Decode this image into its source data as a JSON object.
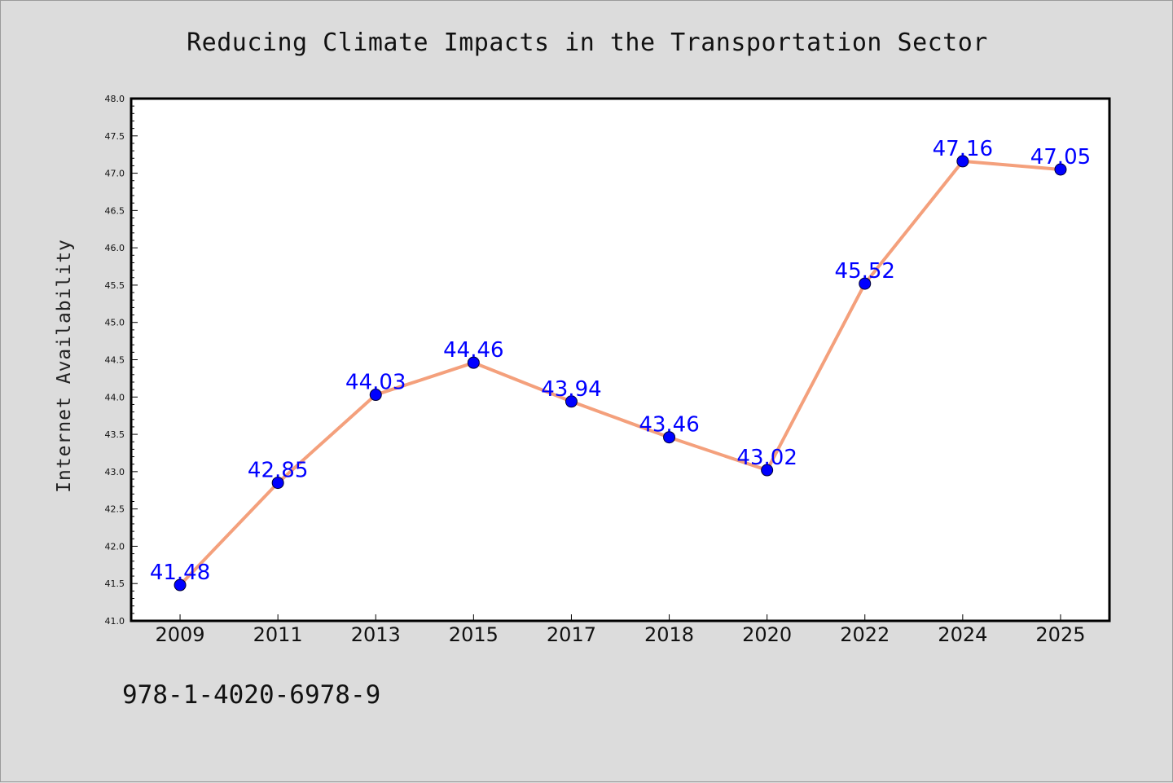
{
  "title": "Reducing Climate Impacts in the Transportation Sector",
  "isbn": "978-1-4020-6978-9",
  "colors": {
    "background": "#dcdcdc",
    "plot_background": "#ffffff",
    "line": "#f4a07c",
    "marker": "#0000ff",
    "data_label": "#0000ff"
  },
  "chart_data": {
    "type": "line",
    "title": "Reducing Climate Impacts in the Transportation Sector",
    "xlabel": "",
    "ylabel": "Internet Availability",
    "categories": [
      "2009",
      "2011",
      "2013",
      "2015",
      "2017",
      "2018",
      "2020",
      "2022",
      "2024",
      "2025"
    ],
    "series": [
      {
        "values": [
          41.48,
          42.85,
          44.03,
          44.46,
          43.94,
          43.46,
          43.02,
          45.52,
          47.16,
          47.05
        ],
        "labels": [
          "41.48",
          "42.85",
          "44.03",
          "44.46",
          "43.94",
          "43.46",
          "43.02",
          "45.52",
          "47.16",
          "47.05"
        ]
      }
    ],
    "ylim": [
      41.0,
      48.0
    ],
    "yticks": [
      "41.0",
      "41.5",
      "42.0",
      "42.5",
      "43.0",
      "43.5",
      "44.0",
      "44.5",
      "45.0",
      "45.5",
      "46.0",
      "46.5",
      "47.0",
      "47.5",
      "48.0"
    ],
    "grid": false,
    "legend": "none"
  }
}
